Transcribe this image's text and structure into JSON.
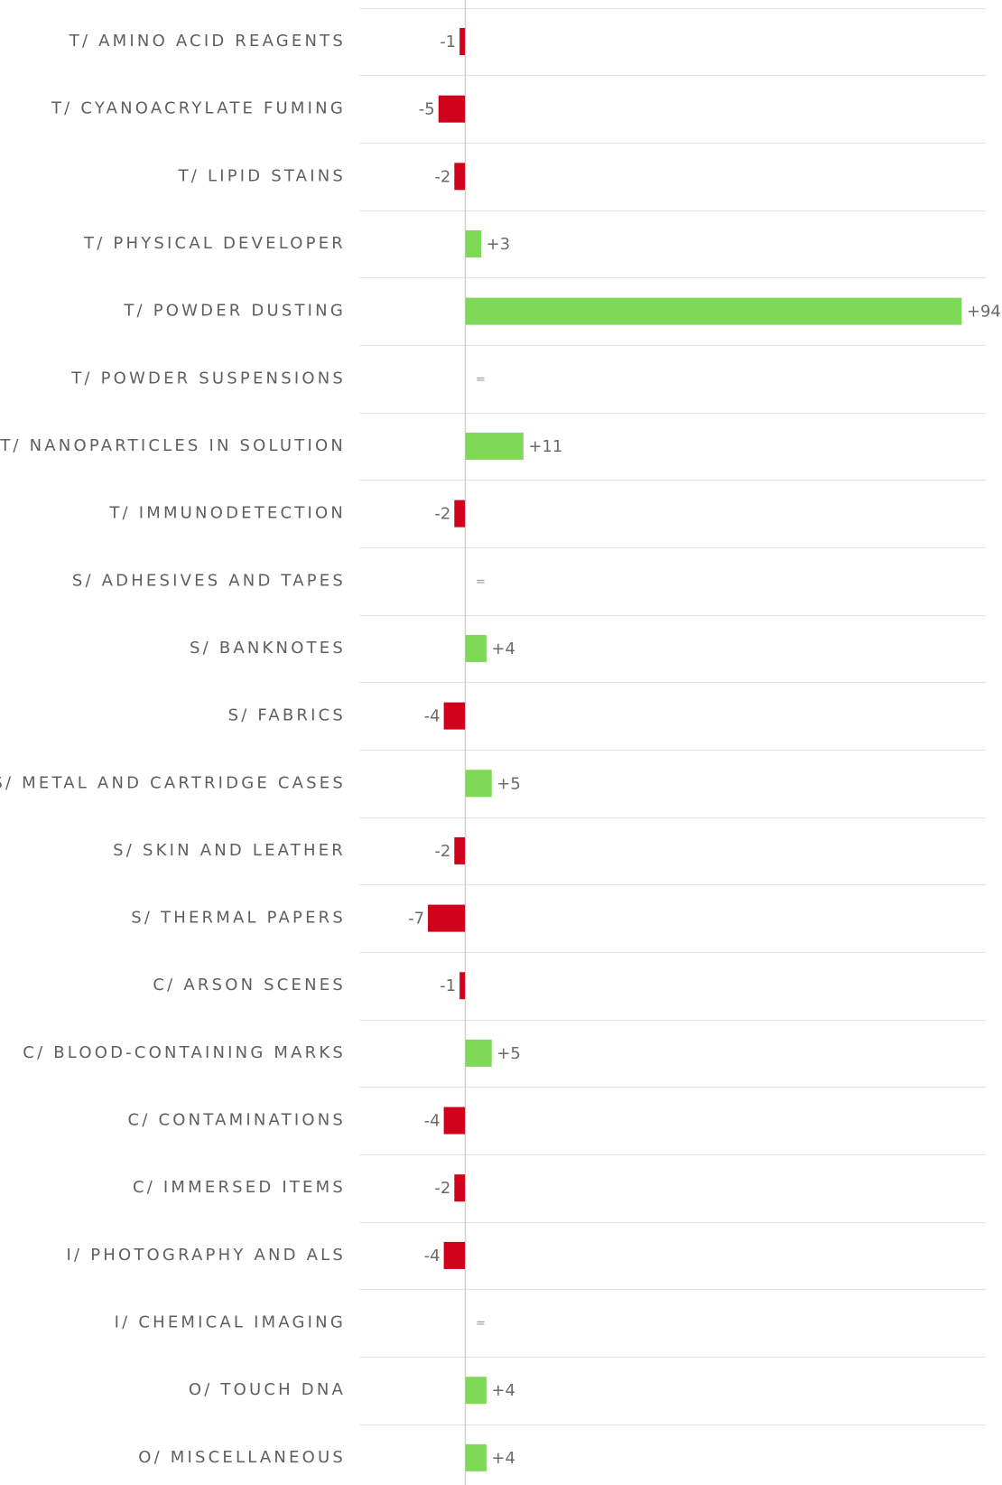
{
  "chart_data": {
    "type": "bar",
    "orientation": "horizontal",
    "categories": [
      "T/ AMINO ACID REAGENTS",
      "T/ CYANOACRYLATE FUMING",
      "T/ LIPID STAINS",
      "T/ PHYSICAL DEVELOPER",
      "T/ POWDER DUSTING",
      "T/ POWDER SUSPENSIONS",
      "T/ NANOPARTICLES IN SOLUTION",
      "T/ IMMUNODETECTION",
      "S/ ADHESIVES AND TAPES",
      "S/ BANKNOTES",
      "S/ FABRICS",
      "S/ METAL AND CARTRIDGE CASES",
      "S/ SKIN AND LEATHER",
      "S/ THERMAL PAPERS",
      "C/ ARSON SCENES",
      "C/ BLOOD-CONTAINING MARKS",
      "C/ CONTAMINATIONS",
      "C/ IMMERSED ITEMS",
      "I/ PHOTOGRAPHY AND ALS",
      "I/ CHEMICAL IMAGING",
      "O/ TOUCH DNA",
      "O/ MISCELLANEOUS"
    ],
    "values": [
      -1,
      -5,
      -2,
      3,
      94,
      0,
      11,
      -2,
      0,
      4,
      -4,
      5,
      -2,
      -7,
      -1,
      5,
      -4,
      -2,
      -4,
      0,
      4,
      4
    ],
    "data_labels": [
      "-1",
      "-5",
      "-2",
      "+3",
      "+94",
      "=",
      "+11",
      "-2",
      "=",
      "+4",
      "-4",
      "+5",
      "-2",
      "-7",
      "-1",
      "+5",
      "-4",
      "-2",
      "-4",
      "=",
      "+4",
      "+4"
    ],
    "positive_color": "#7ed957",
    "negative_color": "#d0021b",
    "grid": true,
    "legend": "none"
  }
}
